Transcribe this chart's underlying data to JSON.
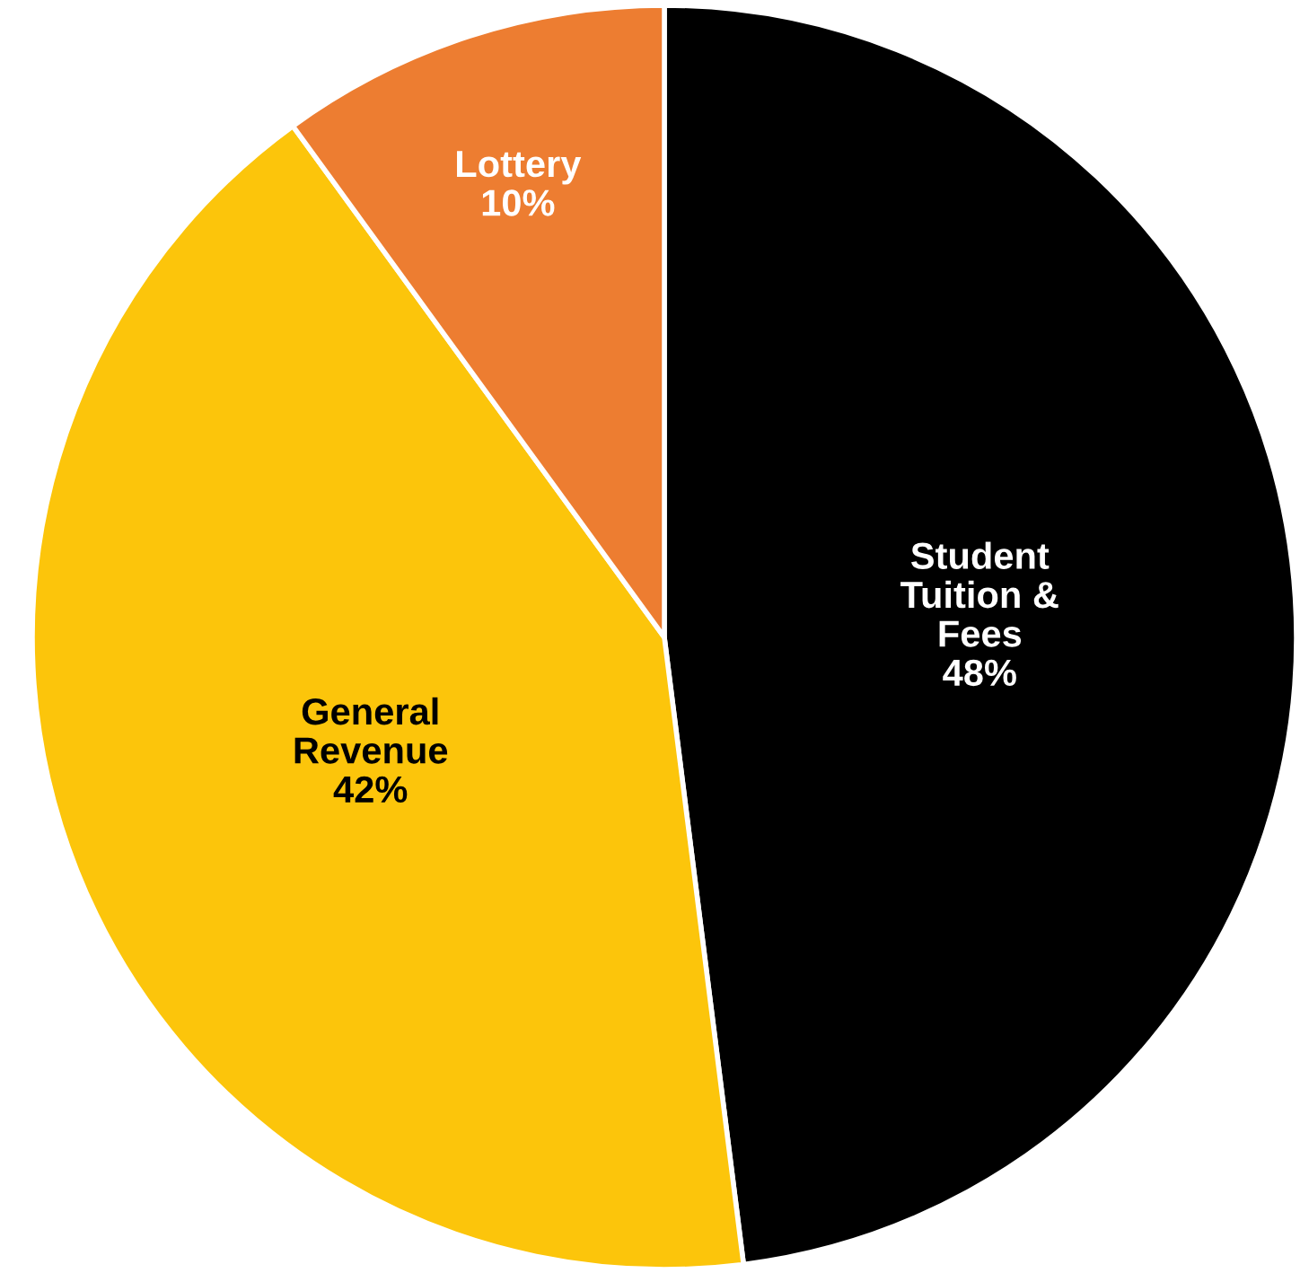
{
  "chart_data": {
    "type": "pie",
    "categories": [
      "Student\nTuition &\nFees",
      "General\nRevenue",
      "Lottery"
    ],
    "values": [
      48,
      42,
      10
    ],
    "colors": [
      "#000000",
      "#fcc50b",
      "#ed7d31"
    ],
    "value_labels": [
      "48%",
      "42%",
      "10%"
    ]
  }
}
